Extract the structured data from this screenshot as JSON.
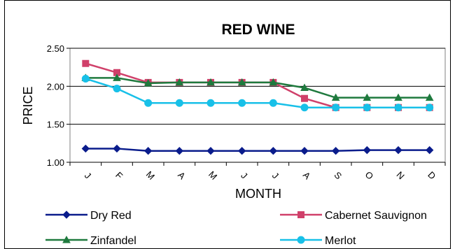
{
  "chart_data": {
    "type": "line",
    "title": "RED WINE",
    "xlabel": "MONTH",
    "ylabel": "PRICE",
    "categories": [
      "J",
      "F",
      "M",
      "A",
      "M",
      "J",
      "J",
      "A",
      "S",
      "O",
      "N",
      "D"
    ],
    "ylim": [
      1.0,
      2.5
    ],
    "yticks": [
      "1.00",
      "1.50",
      "2.00",
      "2.50"
    ],
    "grid": "horizontal",
    "legend_position": "bottom",
    "series": [
      {
        "name": "Dry Red",
        "color": "#0a1c8c",
        "marker": "diamond",
        "values": [
          1.18,
          1.18,
          1.15,
          1.15,
          1.15,
          1.15,
          1.15,
          1.15,
          1.15,
          1.16,
          1.16,
          1.16
        ]
      },
      {
        "name": "Cabernet Sauvignon",
        "color": "#d0406a",
        "marker": "square",
        "values": [
          2.3,
          2.18,
          2.05,
          2.05,
          2.05,
          2.05,
          2.05,
          1.84,
          1.72,
          1.72,
          1.72,
          1.72
        ]
      },
      {
        "name": "Zinfandel",
        "color": "#1f7a3e",
        "marker": "triangle",
        "values": [
          2.11,
          2.11,
          2.04,
          2.05,
          2.05,
          2.05,
          2.05,
          1.98,
          1.85,
          1.85,
          1.85,
          1.85
        ]
      },
      {
        "name": "Merlot",
        "color": "#18c0e8",
        "marker": "circle",
        "values": [
          2.1,
          1.97,
          1.78,
          1.78,
          1.78,
          1.78,
          1.78,
          1.72,
          1.72,
          1.72,
          1.72,
          1.72
        ]
      }
    ]
  }
}
